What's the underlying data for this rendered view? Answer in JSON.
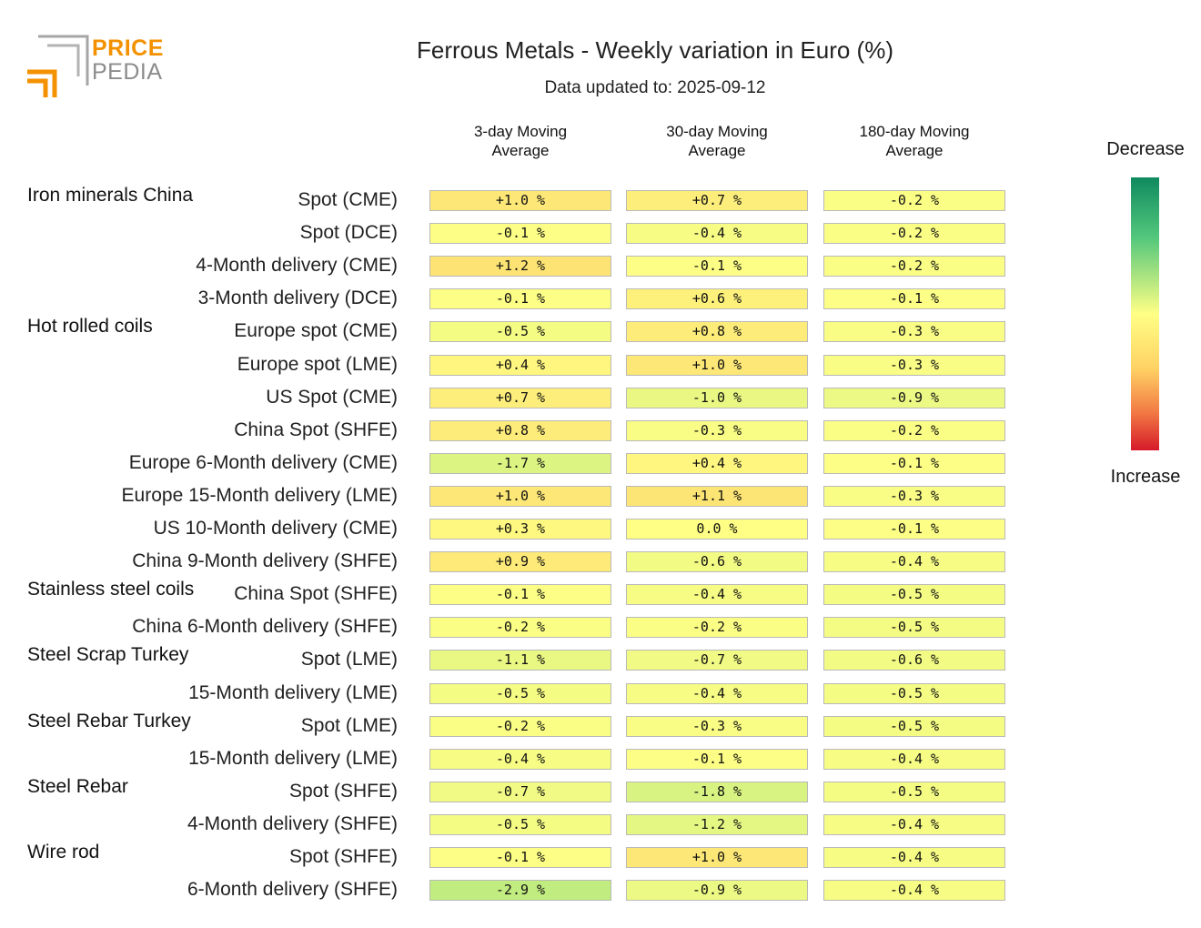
{
  "logo": {
    "line1": "PRICE",
    "line2": "PEDIA"
  },
  "title": "Ferrous Metals - Weekly variation in Euro (%)",
  "subtitle": "Data updated to: 2025-09-12",
  "columns": [
    "3-day Moving\nAverage",
    "30-day Moving\nAverage",
    "180-day Moving\nAverage"
  ],
  "legend": {
    "top": "Decrease",
    "bottom": "Increase"
  },
  "chart_data": {
    "type": "heatmap",
    "title": "Ferrous Metals - Weekly variation in Euro (%)",
    "subtitle": "Data updated to: 2025-09-12",
    "columns": [
      "3-day Moving Average",
      "30-day Moving Average",
      "180-day Moving Average"
    ],
    "colors": {
      "decrease": "#0f8a5f",
      "neutral": "#ffff85",
      "increase": "#d61a2a"
    },
    "rows": [
      {
        "group": "Iron minerals China",
        "label": "Spot (CME)",
        "values": [
          "+1.0 %",
          "+0.7 %",
          "-0.2 %"
        ]
      },
      {
        "group": "",
        "label": "Spot (DCE)",
        "values": [
          "-0.1 %",
          "-0.4 %",
          "-0.2 %"
        ]
      },
      {
        "group": "",
        "label": "4-Month delivery (CME)",
        "values": [
          "+1.2 %",
          "-0.1 %",
          "-0.2 %"
        ]
      },
      {
        "group": "",
        "label": "3-Month delivery (DCE)",
        "values": [
          "-0.1 %",
          "+0.6 %",
          "-0.1 %"
        ]
      },
      {
        "group": "Hot rolled coils",
        "label": "Europe spot (CME)",
        "values": [
          "-0.5 %",
          "+0.8 %",
          "-0.3 %"
        ]
      },
      {
        "group": "",
        "label": "Europe spot (LME)",
        "values": [
          "+0.4 %",
          "+1.0 %",
          "-0.3 %"
        ]
      },
      {
        "group": "",
        "label": "US Spot (CME)",
        "values": [
          "+0.7 %",
          "-1.0 %",
          "-0.9 %"
        ]
      },
      {
        "group": "",
        "label": "China Spot (SHFE)",
        "values": [
          "+0.8 %",
          "-0.3 %",
          "-0.2 %"
        ]
      },
      {
        "group": "",
        "label": "Europe 6-Month delivery (CME)",
        "values": [
          "-1.7 %",
          "+0.4 %",
          "-0.1 %"
        ]
      },
      {
        "group": "",
        "label": "Europe 15-Month delivery (LME)",
        "values": [
          "+1.0 %",
          "+1.1 %",
          "-0.3 %"
        ]
      },
      {
        "group": "",
        "label": "US 10-Month delivery (CME)",
        "values": [
          "+0.3 %",
          "0.0 %",
          "-0.1 %"
        ]
      },
      {
        "group": "",
        "label": "China 9-Month delivery (SHFE)",
        "values": [
          "+0.9 %",
          "-0.6 %",
          "-0.4 %"
        ]
      },
      {
        "group": "Stainless steel coils",
        "label": "China Spot (SHFE)",
        "values": [
          "-0.1 %",
          "-0.4 %",
          "-0.5 %"
        ]
      },
      {
        "group": "",
        "label": "China 6-Month delivery (SHFE)",
        "values": [
          "-0.2 %",
          "-0.2 %",
          "-0.5 %"
        ]
      },
      {
        "group": "Steel Scrap Turkey",
        "label": "Spot (LME)",
        "values": [
          "-1.1 %",
          "-0.7 %",
          "-0.6 %"
        ]
      },
      {
        "group": "",
        "label": "15-Month delivery (LME)",
        "values": [
          "-0.5 %",
          "-0.4 %",
          "-0.5 %"
        ]
      },
      {
        "group": "Steel Rebar Turkey",
        "label": "Spot (LME)",
        "values": [
          "-0.2 %",
          "-0.3 %",
          "-0.5 %"
        ]
      },
      {
        "group": "",
        "label": "15-Month delivery (LME)",
        "values": [
          "-0.4 %",
          "-0.1 %",
          "-0.4 %"
        ]
      },
      {
        "group": "Steel Rebar",
        "label": "Spot (SHFE)",
        "values": [
          "-0.7 %",
          "-1.8 %",
          "-0.5 %"
        ]
      },
      {
        "group": "",
        "label": "4-Month delivery (SHFE)",
        "values": [
          "-0.5 %",
          "-1.2 %",
          "-0.4 %"
        ]
      },
      {
        "group": "Wire rod",
        "label": "Spot (SHFE)",
        "values": [
          "-0.1 %",
          "+1.0 %",
          "-0.4 %"
        ]
      },
      {
        "group": "",
        "label": "6-Month delivery (SHFE)",
        "values": [
          "-2.9 %",
          "-0.9 %",
          "-0.4 %"
        ]
      }
    ]
  }
}
